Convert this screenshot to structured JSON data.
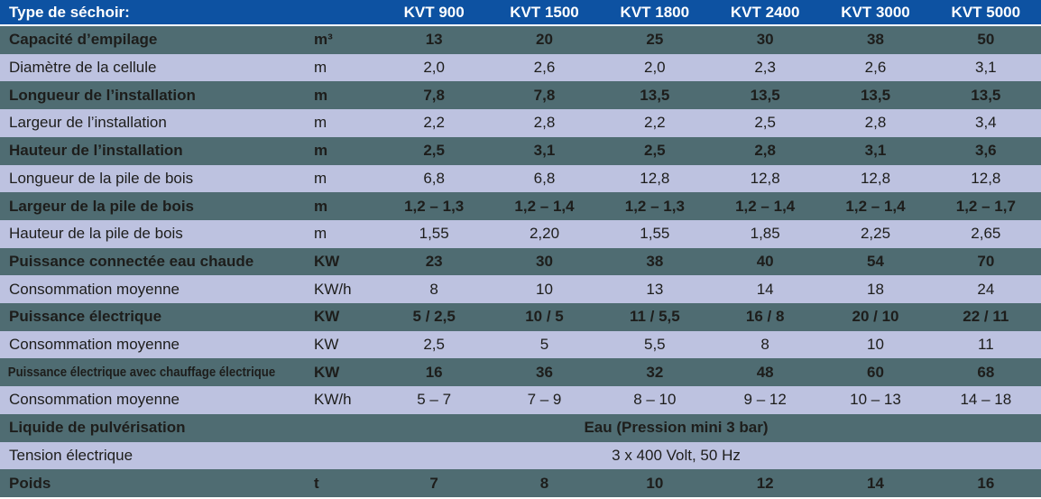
{
  "colors": {
    "header_bg": "#0d52a2",
    "header_text": "#ffffff",
    "row_dark_bg": "#4f6c72",
    "row_light_bg": "#bdc2e0",
    "text": "#1d1d1b",
    "separator": "#ffffff"
  },
  "table": {
    "title": "Type de séchoir:",
    "columns": [
      "KVT 900",
      "KVT 1500",
      "KVT 1800",
      "KVT 2400",
      "KVT 3000",
      "KVT 5000"
    ],
    "rows": [
      {
        "label": "Capacité d’empilage",
        "unit": "m³",
        "values": [
          "13",
          "20",
          "25",
          "30",
          "38",
          "50"
        ]
      },
      {
        "label": "Diamètre de la cellule",
        "unit": "m",
        "values": [
          "2,0",
          "2,6",
          "2,0",
          "2,3",
          "2,6",
          "3,1"
        ]
      },
      {
        "label": "Longueur de l’installation",
        "unit": "m",
        "values": [
          "7,8",
          "7,8",
          "13,5",
          "13,5",
          "13,5",
          "13,5"
        ]
      },
      {
        "label": "Largeur de l’installation",
        "unit": "m",
        "values": [
          "2,2",
          "2,8",
          "2,2",
          "2,5",
          "2,8",
          "3,4"
        ]
      },
      {
        "label": "Hauteur de l’installation",
        "unit": "m",
        "values": [
          "2,5",
          "3,1",
          "2,5",
          "2,8",
          "3,1",
          "3,6"
        ]
      },
      {
        "label": "Longueur de la pile de bois",
        "unit": "m",
        "values": [
          "6,8",
          "6,8",
          "12,8",
          "12,8",
          "12,8",
          "12,8"
        ]
      },
      {
        "label": "Largeur de la pile de bois",
        "unit": "m",
        "values": [
          "1,2 – 1,3",
          "1,2 – 1,4",
          "1,2 – 1,3",
          "1,2 – 1,4",
          "1,2 – 1,4",
          "1,2 – 1,7"
        ]
      },
      {
        "label": "Hauteur de la pile de bois",
        "unit": "m",
        "values": [
          "1,55",
          "2,20",
          "1,55",
          "1,85",
          "2,25",
          "2,65"
        ]
      },
      {
        "label": "Puissance connectée eau chaude",
        "unit": "KW",
        "values": [
          "23",
          "30",
          "38",
          "40",
          "54",
          "70"
        ]
      },
      {
        "label": "Consommation moyenne",
        "unit": "KW/h",
        "values": [
          "8",
          "10",
          "13",
          "14",
          "18",
          "24"
        ]
      },
      {
        "label": "Puissance électrique",
        "unit": "KW",
        "values": [
          "5 / 2,5",
          "10 / 5",
          "11 / 5,5",
          "16 / 8",
          "20 / 10",
          "22 / 11"
        ]
      },
      {
        "label": "Consommation moyenne",
        "unit": "KW",
        "values": [
          "2,5",
          "5",
          "5,5",
          "8",
          "10",
          "11"
        ]
      },
      {
        "label": "Puissance électrique avec chauffage électrique",
        "unit": "KW",
        "values": [
          "16",
          "36",
          "32",
          "48",
          "60",
          "68"
        ]
      },
      {
        "label": "Consommation moyenne",
        "unit": "KW/h",
        "values": [
          "5 – 7",
          "7 – 9",
          "8 – 10",
          "9 – 12",
          "10 – 13",
          "14 – 18"
        ]
      },
      {
        "label": "Liquide de pulvérisation",
        "merged": "Eau (Pression mini 3 bar)"
      },
      {
        "label": "Tension électrique",
        "merged": "3 x 400 Volt, 50 Hz"
      },
      {
        "label": "Poids",
        "unit": "t",
        "values": [
          "7",
          "8",
          "10",
          "12",
          "14",
          "16"
        ]
      }
    ]
  }
}
